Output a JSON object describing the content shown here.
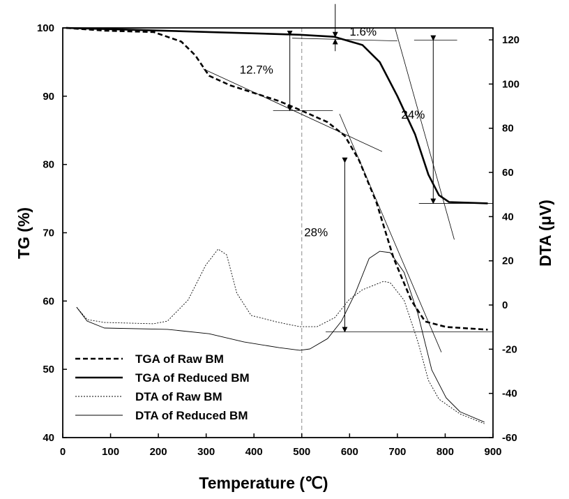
{
  "chart_data": {
    "type": "line",
    "xlabel": "Temperature (℃)",
    "ylabel": "TG (%)",
    "y2label": "DTA (μV)",
    "xlim": [
      0,
      900
    ],
    "ylim": [
      40,
      100
    ],
    "y2lim": [
      -60,
      125.4
    ],
    "xticks": [
      0,
      100,
      200,
      300,
      400,
      500,
      600,
      700,
      800,
      900
    ],
    "yticks": [
      40,
      50,
      60,
      70,
      80,
      90,
      100
    ],
    "y2ticks": [
      -60,
      -40,
      -20,
      0,
      20,
      40,
      60,
      80,
      100,
      120
    ],
    "grid": false,
    "legend_position": "bottom-left",
    "series": [
      {
        "name": "TGA of Raw BM",
        "axis": "left",
        "style": "dashed-thick",
        "points": [
          [
            7,
            100
          ],
          [
            87,
            99.6
          ],
          [
            190,
            99.4
          ],
          [
            248,
            98
          ],
          [
            277,
            96
          ],
          [
            306,
            93
          ],
          [
            350,
            91.6
          ],
          [
            452,
            89.3
          ],
          [
            496,
            88
          ],
          [
            554,
            86.2
          ],
          [
            590,
            84.2
          ],
          [
            620,
            80.6
          ],
          [
            656,
            74.5
          ],
          [
            692,
            66.3
          ],
          [
            729,
            60.1
          ],
          [
            758,
            57
          ],
          [
            802,
            56.2
          ],
          [
            889,
            55.8
          ]
        ]
      },
      {
        "name": "TGA of Reduced BM",
        "axis": "left",
        "style": "solid-thick",
        "points": [
          [
            7,
            100
          ],
          [
            306,
            99.4
          ],
          [
            496,
            99
          ],
          [
            568,
            98.7
          ],
          [
            627,
            97.5
          ],
          [
            663,
            95
          ],
          [
            700,
            90
          ],
          [
            737,
            84.4
          ],
          [
            765,
            78.5
          ],
          [
            787,
            75.5
          ],
          [
            808,
            74.5
          ],
          [
            889,
            74.3
          ]
        ]
      },
      {
        "name": "DTA of Raw BM",
        "axis": "right",
        "style": "dotted-thin",
        "points": [
          [
            29,
            -1
          ],
          [
            51,
            -6.6
          ],
          [
            87,
            -7.9
          ],
          [
            190,
            -8.5
          ],
          [
            219,
            -7.3
          ],
          [
            262,
            2.2
          ],
          [
            299,
            18
          ],
          [
            325,
            25.3
          ],
          [
            343,
            22.7
          ],
          [
            364,
            5.4
          ],
          [
            394,
            -4.7
          ],
          [
            452,
            -7.9
          ],
          [
            496,
            -9.8
          ],
          [
            532,
            -9.8
          ],
          [
            569,
            -5.7
          ],
          [
            598,
            2.2
          ],
          [
            627,
            6.9
          ],
          [
            671,
            10.7
          ],
          [
            685,
            10.1
          ],
          [
            714,
            2.2
          ],
          [
            743,
            -16.7
          ],
          [
            765,
            -34.1
          ],
          [
            787,
            -42.6
          ],
          [
            831,
            -49.3
          ],
          [
            882,
            -53.7
          ]
        ]
      },
      {
        "name": "DTA of Reduced BM",
        "axis": "right",
        "style": "solid-thin",
        "points": [
          [
            29,
            -1
          ],
          [
            51,
            -7.3
          ],
          [
            87,
            -10.4
          ],
          [
            219,
            -11
          ],
          [
            306,
            -13
          ],
          [
            379,
            -16.7
          ],
          [
            452,
            -19.3
          ],
          [
            496,
            -20.5
          ],
          [
            517,
            -19.9
          ],
          [
            554,
            -15.2
          ],
          [
            583,
            -7.3
          ],
          [
            612,
            5.4
          ],
          [
            641,
            21.1
          ],
          [
            663,
            24.3
          ],
          [
            685,
            23.7
          ],
          [
            714,
            14.8
          ],
          [
            743,
            -4.1
          ],
          [
            772,
            -29.4
          ],
          [
            802,
            -42
          ],
          [
            831,
            -48.3
          ],
          [
            882,
            -53
          ]
        ]
      }
    ],
    "annotations": [
      {
        "text": "1.6%",
        "x": 600,
        "y": 98.9
      },
      {
        "text": "12.7%",
        "x": 370,
        "y": 93.3
      },
      {
        "text": "24%",
        "x": 708,
        "y": 86.7
      },
      {
        "text": "28%",
        "x": 505,
        "y": 69.5
      }
    ],
    "reference_line_x": 500
  }
}
